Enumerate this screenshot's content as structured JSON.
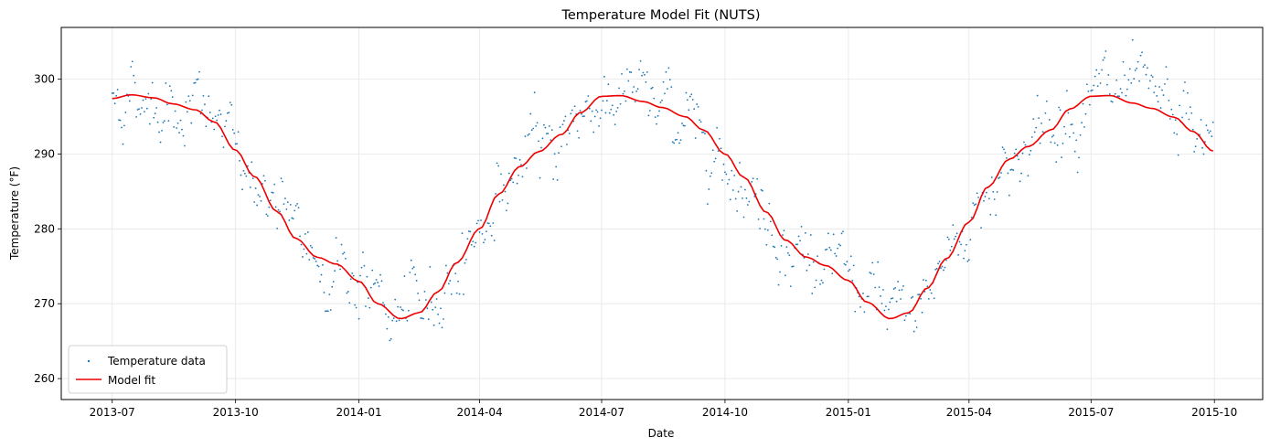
{
  "chart_data": {
    "type": "line",
    "title": "Temperature Model Fit (NUTS)",
    "xlabel": "Date",
    "ylabel": "Temperature (°F)",
    "grid": true,
    "legend_position": "lower-left",
    "x_range": [
      "2013-05-24",
      "2015-11-06"
    ],
    "ylim": [
      257.2,
      306.9
    ],
    "x_ticks": [
      "2013-07",
      "2013-10",
      "2014-01",
      "2014-04",
      "2014-07",
      "2014-10",
      "2015-01",
      "2015-04",
      "2015-07",
      "2015-10"
    ],
    "y_ticks": [
      260,
      270,
      280,
      290,
      300
    ],
    "series": [
      {
        "name": "Temperature data",
        "kind": "scatter",
        "color": "#1f77b4",
        "note": "≈820 daily observations, 2013-07-01 to 2015-09-30, scattered around the model fit (spread ≈ ±3–6 °F)",
        "x_start": "2013-07-01",
        "x_end": "2015-09-30",
        "noise_amplitude": 3.6
      },
      {
        "name": "Model fit",
        "kind": "line",
        "color": "#ee0000",
        "points": [
          [
            "2013-07-01",
            297.4
          ],
          [
            "2013-07-15",
            297.9
          ],
          [
            "2013-08-01",
            297.5
          ],
          [
            "2013-08-15",
            296.7
          ],
          [
            "2013-09-01",
            295.9
          ],
          [
            "2013-09-15",
            294.3
          ],
          [
            "2013-10-01",
            290.5
          ],
          [
            "2013-10-15",
            287.0
          ],
          [
            "2013-11-01",
            282.3
          ],
          [
            "2013-11-15",
            278.7
          ],
          [
            "2013-12-01",
            276.2
          ],
          [
            "2013-12-15",
            275.3
          ],
          [
            "2014-01-01",
            273.0
          ],
          [
            "2014-01-15",
            270.0
          ],
          [
            "2014-02-01",
            268.0
          ],
          [
            "2014-02-15",
            268.8
          ],
          [
            "2014-03-01",
            271.6
          ],
          [
            "2014-03-15",
            275.5
          ],
          [
            "2014-04-01",
            280.0
          ],
          [
            "2014-04-15",
            284.6
          ],
          [
            "2014-05-01",
            288.3
          ],
          [
            "2014-05-15",
            290.3
          ],
          [
            "2014-06-01",
            292.6
          ],
          [
            "2014-06-15",
            295.5
          ],
          [
            "2014-07-01",
            297.7
          ],
          [
            "2014-07-15",
            297.8
          ],
          [
            "2014-08-01",
            297.0
          ],
          [
            "2014-08-15",
            296.2
          ],
          [
            "2014-09-01",
            295.0
          ],
          [
            "2014-09-15",
            293.2
          ],
          [
            "2014-10-01",
            290.0
          ],
          [
            "2014-10-15",
            286.9
          ],
          [
            "2014-11-01",
            282.2
          ],
          [
            "2014-11-15",
            278.5
          ],
          [
            "2014-12-01",
            276.2
          ],
          [
            "2014-12-15",
            275.1
          ],
          [
            "2015-01-01",
            273.1
          ],
          [
            "2015-01-15",
            270.2
          ],
          [
            "2015-02-01",
            268.0
          ],
          [
            "2015-02-15",
            268.8
          ],
          [
            "2015-03-01",
            272.1
          ],
          [
            "2015-03-15",
            276.0
          ],
          [
            "2015-04-01",
            280.9
          ],
          [
            "2015-04-15",
            285.6
          ],
          [
            "2015-05-01",
            289.3
          ],
          [
            "2015-05-15",
            291.0
          ],
          [
            "2015-06-01",
            293.2
          ],
          [
            "2015-06-15",
            296.0
          ],
          [
            "2015-07-01",
            297.7
          ],
          [
            "2015-07-15",
            297.8
          ],
          [
            "2015-08-01",
            296.8
          ],
          [
            "2015-08-15",
            296.1
          ],
          [
            "2015-09-01",
            294.9
          ],
          [
            "2015-09-15",
            293.0
          ],
          [
            "2015-09-30",
            290.4
          ]
        ]
      }
    ]
  }
}
